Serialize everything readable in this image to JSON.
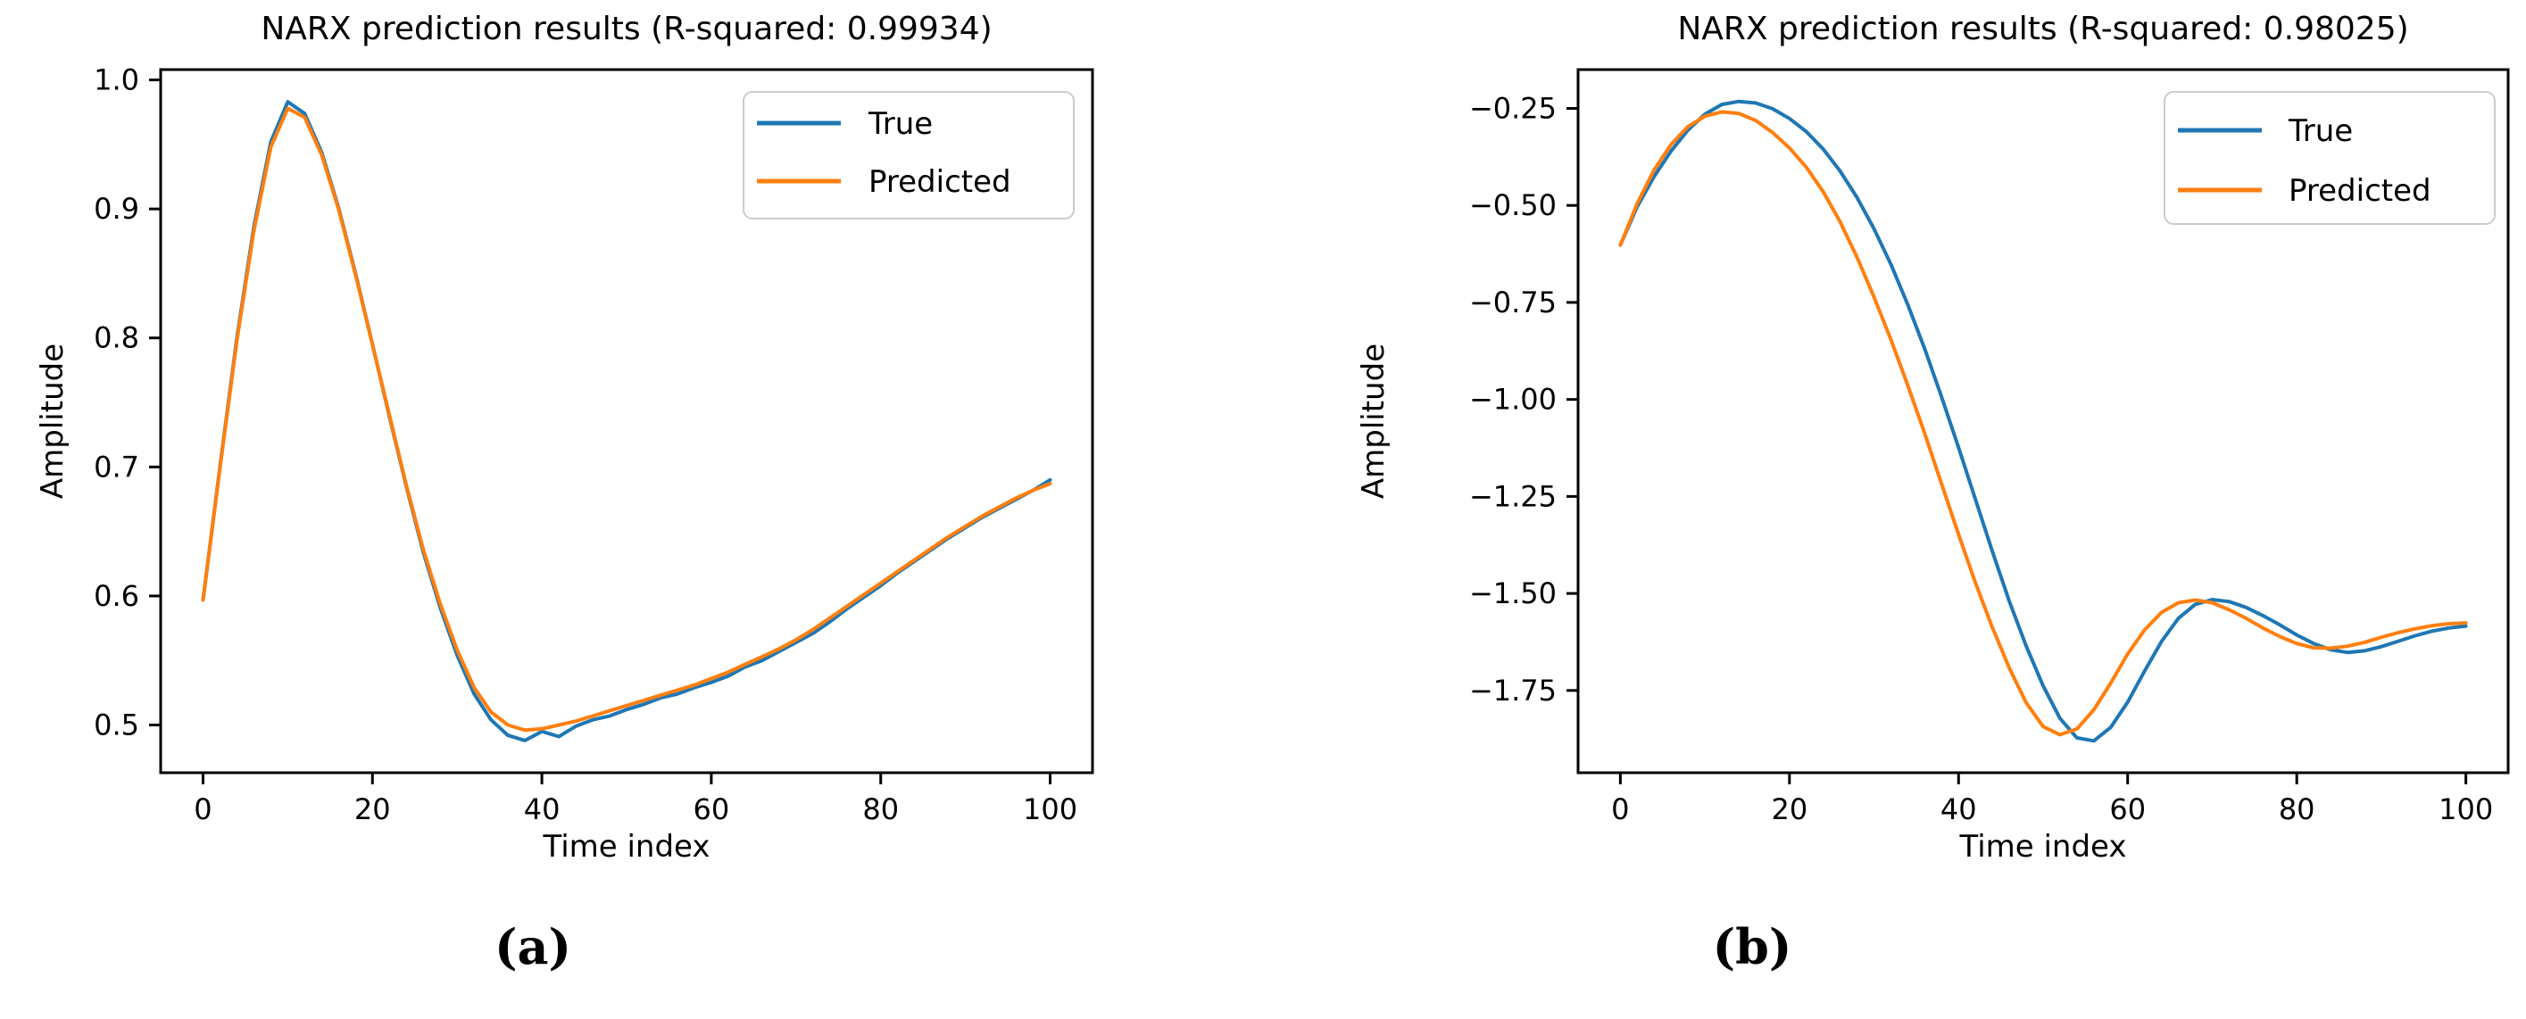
{
  "figure": {
    "captions": {
      "a": "(a)",
      "b": "(b)"
    },
    "colors": {
      "true_line": "#1f77b4",
      "predicted_line": "#ff7f0e",
      "legend_border": "#cccccc",
      "axis": "#000000",
      "background": "#ffffff"
    }
  },
  "chart_data": [
    {
      "id": "a",
      "type": "line",
      "title": "NARX prediction results (R-squared: 0.99934)",
      "xlabel": "Time index",
      "ylabel": "Amplitude",
      "xlim": [
        -5,
        105
      ],
      "ylim": [
        0.463,
        1.008
      ],
      "grid": false,
      "legend_position": "upper right",
      "xticks": [
        0,
        20,
        40,
        60,
        80,
        100
      ],
      "xtick_labels": [
        "0",
        "20",
        "40",
        "60",
        "80",
        "100"
      ],
      "yticks": [
        0.5,
        0.6,
        0.7,
        0.8,
        0.9,
        1.0
      ],
      "ytick_labels": [
        "0.5",
        "0.6",
        "0.7",
        "0.8",
        "0.9",
        "1.0"
      ],
      "x": [
        0,
        2,
        4,
        6,
        8,
        10,
        12,
        14,
        16,
        18,
        20,
        22,
        24,
        26,
        28,
        30,
        32,
        34,
        36,
        38,
        40,
        42,
        44,
        46,
        48,
        50,
        52,
        54,
        56,
        58,
        60,
        62,
        64,
        66,
        68,
        70,
        72,
        74,
        76,
        78,
        80,
        82,
        84,
        86,
        88,
        90,
        92,
        94,
        96,
        98,
        100
      ],
      "series": [
        {
          "name": "True",
          "color": "#1f77b4",
          "values": [
            0.597,
            0.7,
            0.8,
            0.886,
            0.952,
            0.983,
            0.974,
            0.944,
            0.901,
            0.85,
            0.795,
            0.739,
            0.685,
            0.634,
            0.591,
            0.554,
            0.524,
            0.504,
            0.492,
            0.488,
            0.495,
            0.491,
            0.499,
            0.504,
            0.507,
            0.512,
            0.516,
            0.521,
            0.524,
            0.529,
            0.533,
            0.538,
            0.545,
            0.55,
            0.557,
            0.564,
            0.571,
            0.58,
            0.59,
            0.599,
            0.608,
            0.618,
            0.627,
            0.636,
            0.645,
            0.653,
            0.661,
            0.668,
            0.675,
            0.682,
            0.69
          ]
        },
        {
          "name": "Predicted",
          "color": "#ff7f0e",
          "values": [
            0.597,
            0.699,
            0.798,
            0.883,
            0.948,
            0.978,
            0.971,
            0.942,
            0.9,
            0.849,
            0.795,
            0.74,
            0.686,
            0.636,
            0.594,
            0.558,
            0.529,
            0.51,
            0.5,
            0.496,
            0.497,
            0.5,
            0.503,
            0.507,
            0.511,
            0.515,
            0.519,
            0.523,
            0.527,
            0.531,
            0.536,
            0.541,
            0.547,
            0.553,
            0.559,
            0.566,
            0.574,
            0.583,
            0.592,
            0.601,
            0.61,
            0.619,
            0.628,
            0.637,
            0.646,
            0.654,
            0.662,
            0.669,
            0.676,
            0.682,
            0.687
          ]
        }
      ],
      "legend": [
        "True",
        "Predicted"
      ],
      "caption": "(a)"
    },
    {
      "id": "b",
      "type": "line",
      "title": "NARX prediction results (R-squared: 0.98025)",
      "xlabel": "Time index",
      "ylabel": "Amplitude",
      "xlim": [
        -5,
        105
      ],
      "ylim": [
        -1.962,
        -0.15
      ],
      "grid": false,
      "legend_position": "upper right",
      "xticks": [
        0,
        20,
        40,
        60,
        80,
        100
      ],
      "xtick_labels": [
        "0",
        "20",
        "40",
        "60",
        "80",
        "100"
      ],
      "yticks": [
        -0.25,
        -0.5,
        -0.75,
        -1.0,
        -1.25,
        -1.5,
        -1.75
      ],
      "ytick_labels": [
        "−0.25",
        "−0.50",
        "−0.75",
        "−1.00",
        "−1.25",
        "−1.50",
        "−1.75"
      ],
      "x": [
        0,
        2,
        4,
        6,
        8,
        10,
        12,
        14,
        16,
        18,
        20,
        22,
        24,
        26,
        28,
        30,
        32,
        34,
        36,
        38,
        40,
        42,
        44,
        46,
        48,
        50,
        52,
        54,
        56,
        58,
        60,
        62,
        64,
        66,
        68,
        70,
        72,
        74,
        76,
        78,
        80,
        82,
        84,
        86,
        88,
        90,
        92,
        94,
        96,
        98,
        100
      ],
      "series": [
        {
          "name": "True",
          "color": "#1f77b4",
          "values": [
            -0.602,
            -0.503,
            -0.425,
            -0.36,
            -0.306,
            -0.265,
            -0.24,
            -0.232,
            -0.236,
            -0.251,
            -0.276,
            -0.31,
            -0.355,
            -0.412,
            -0.48,
            -0.56,
            -0.652,
            -0.756,
            -0.87,
            -0.994,
            -1.124,
            -1.258,
            -1.392,
            -1.52,
            -1.636,
            -1.738,
            -1.822,
            -1.872,
            -1.88,
            -1.845,
            -1.78,
            -1.7,
            -1.624,
            -1.564,
            -1.528,
            -1.516,
            -1.521,
            -1.536,
            -1.557,
            -1.581,
            -1.607,
            -1.629,
            -1.645,
            -1.652,
            -1.648,
            -1.637,
            -1.623,
            -1.609,
            -1.597,
            -1.589,
            -1.584
          ]
        },
        {
          "name": "Predicted",
          "color": "#ff7f0e",
          "values": [
            -0.602,
            -0.495,
            -0.408,
            -0.343,
            -0.297,
            -0.27,
            -0.259,
            -0.263,
            -0.281,
            -0.312,
            -0.352,
            -0.402,
            -0.465,
            -0.543,
            -0.634,
            -0.736,
            -0.846,
            -0.964,
            -1.088,
            -1.218,
            -1.348,
            -1.473,
            -1.588,
            -1.692,
            -1.782,
            -1.843,
            -1.864,
            -1.849,
            -1.8,
            -1.731,
            -1.656,
            -1.594,
            -1.549,
            -1.524,
            -1.517,
            -1.524,
            -1.542,
            -1.564,
            -1.589,
            -1.611,
            -1.629,
            -1.64,
            -1.641,
            -1.636,
            -1.626,
            -1.613,
            -1.601,
            -1.591,
            -1.583,
            -1.578,
            -1.576
          ]
        }
      ],
      "legend": [
        "True",
        "Predicted"
      ],
      "caption": "(b)"
    }
  ]
}
